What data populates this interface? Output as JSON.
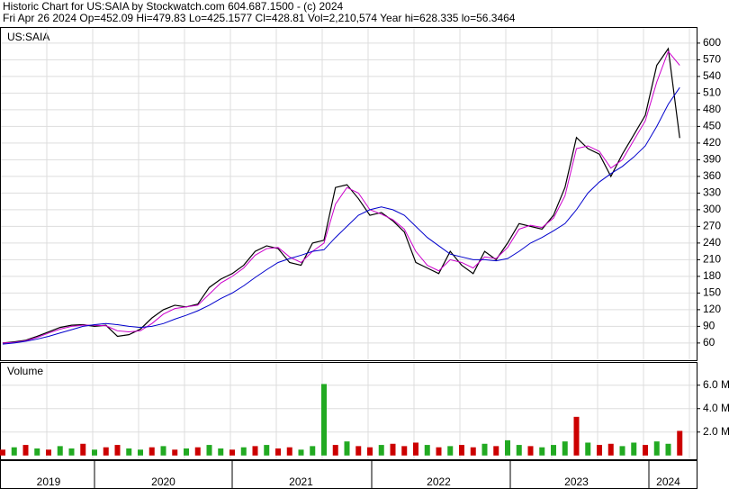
{
  "header": {
    "line1": "Historic Chart for US:SAIA by Stockwatch.com 604.687.1500 - (c) 2024",
    "line2": "Fri Apr 26 2024  Op=452.09  Hi=479.83  Lo=425.1577  Cl=428.81  Vol=2,210,574  Year hi=628.335  lo=56.3464"
  },
  "chart_data": [
    {
      "type": "line",
      "title": "US:SAIA",
      "ylim": [
        29,
        629
      ],
      "yticks": [
        60,
        90,
        120,
        150,
        180,
        210,
        240,
        270,
        300,
        330,
        360,
        390,
        420,
        450,
        480,
        510,
        540,
        570,
        600
      ],
      "grid": true,
      "series": [
        {
          "color": "#000000",
          "values": [
            60,
            62,
            65,
            72,
            80,
            88,
            92,
            93,
            90,
            92,
            72,
            75,
            85,
            105,
            120,
            128,
            125,
            130,
            160,
            175,
            185,
            200,
            225,
            235,
            230,
            205,
            200,
            240,
            245,
            340,
            345,
            320,
            290,
            295,
            280,
            260,
            205,
            195,
            185,
            225,
            200,
            185,
            225,
            210,
            240,
            275,
            270,
            265,
            290,
            340,
            430,
            410,
            400,
            360,
            400,
            435,
            470,
            560,
            590,
            429
          ]
        },
        {
          "color": "#cc00cc",
          "values": [
            60,
            61,
            64,
            70,
            78,
            85,
            90,
            92,
            92,
            91,
            82,
            80,
            82,
            95,
            112,
            122,
            125,
            128,
            148,
            168,
            180,
            195,
            218,
            230,
            232,
            215,
            205,
            225,
            240,
            310,
            340,
            330,
            300,
            292,
            282,
            265,
            225,
            200,
            190,
            210,
            205,
            195,
            215,
            212,
            232,
            265,
            272,
            268,
            285,
            325,
            410,
            415,
            405,
            375,
            390,
            425,
            460,
            530,
            585,
            560
          ]
        },
        {
          "color": "#0000cc",
          "values": [
            58,
            60,
            63,
            67,
            72,
            78,
            84,
            90,
            93,
            95,
            93,
            90,
            88,
            90,
            95,
            103,
            110,
            118,
            128,
            140,
            150,
            163,
            178,
            192,
            205,
            212,
            218,
            225,
            228,
            250,
            270,
            290,
            300,
            305,
            300,
            290,
            270,
            250,
            235,
            220,
            215,
            210,
            210,
            208,
            212,
            225,
            240,
            250,
            262,
            275,
            300,
            330,
            350,
            365,
            378,
            395,
            415,
            450,
            490,
            520
          ]
        }
      ]
    },
    {
      "type": "bar",
      "title": "Volume",
      "ylim": [
        -400000,
        7900000
      ],
      "yticks": [
        {
          "value": 2000000,
          "label": "2.0 M"
        },
        {
          "value": 4000000,
          "label": "4.0 M"
        },
        {
          "value": 6000000,
          "label": "6.0 M"
        }
      ],
      "categories": [
        null,
        null,
        null,
        null,
        "2019",
        null,
        null,
        null,
        null,
        null,
        null,
        null,
        null,
        null,
        "2020",
        null,
        null,
        null,
        null,
        null,
        null,
        null,
        null,
        null,
        null,
        null,
        "2021",
        null,
        null,
        null,
        null,
        null,
        null,
        null,
        null,
        null,
        null,
        null,
        "2022",
        null,
        null,
        null,
        null,
        null,
        null,
        null,
        null,
        null,
        null,
        null,
        "2023",
        null,
        null,
        null,
        null,
        null,
        null,
        null,
        "2024",
        null
      ],
      "values": [
        500000,
        700000,
        900000,
        600000,
        500000,
        800000,
        600000,
        1000000,
        500000,
        700000,
        900000,
        600000,
        500000,
        700000,
        800000,
        500000,
        600000,
        700000,
        900000,
        600000,
        500000,
        700000,
        800000,
        900000,
        600000,
        700000,
        500000,
        800000,
        6100000,
        900000,
        1200000,
        800000,
        700000,
        900000,
        1000000,
        800000,
        1100000,
        900000,
        700000,
        800000,
        900000,
        700000,
        1000000,
        800000,
        1300000,
        900000,
        800000,
        700000,
        900000,
        1200000,
        3300000,
        1100000,
        900000,
        1000000,
        800000,
        1100000,
        900000,
        1200000,
        1000000,
        2100000
      ],
      "colors": [
        "#cc0000",
        "#22aa22",
        "#cc0000",
        "#22aa22",
        "#cc0000",
        "#22aa22",
        "#22aa22",
        "#cc0000",
        "#22aa22",
        "#cc0000",
        "#cc0000",
        "#22aa22",
        "#22aa22",
        "#cc0000",
        "#22aa22",
        "#cc0000",
        "#22aa22",
        "#cc0000",
        "#22aa22",
        "#22aa22",
        "#cc0000",
        "#22aa22",
        "#cc0000",
        "#22aa22",
        "#cc0000",
        "#cc0000",
        "#22aa22",
        "#22aa22",
        "#22aa22",
        "#cc0000",
        "#22aa22",
        "#cc0000",
        "#cc0000",
        "#22aa22",
        "#cc0000",
        "#cc0000",
        "#cc0000",
        "#22aa22",
        "#cc0000",
        "#22aa22",
        "#cc0000",
        "#cc0000",
        "#22aa22",
        "#cc0000",
        "#22aa22",
        "#22aa22",
        "#cc0000",
        "#22aa22",
        "#22aa22",
        "#22aa22",
        "#cc0000",
        "#22aa22",
        "#cc0000",
        "#cc0000",
        "#22aa22",
        "#22aa22",
        "#cc0000",
        "#22aa22",
        "#22aa22",
        "#cc0000"
      ]
    }
  ]
}
